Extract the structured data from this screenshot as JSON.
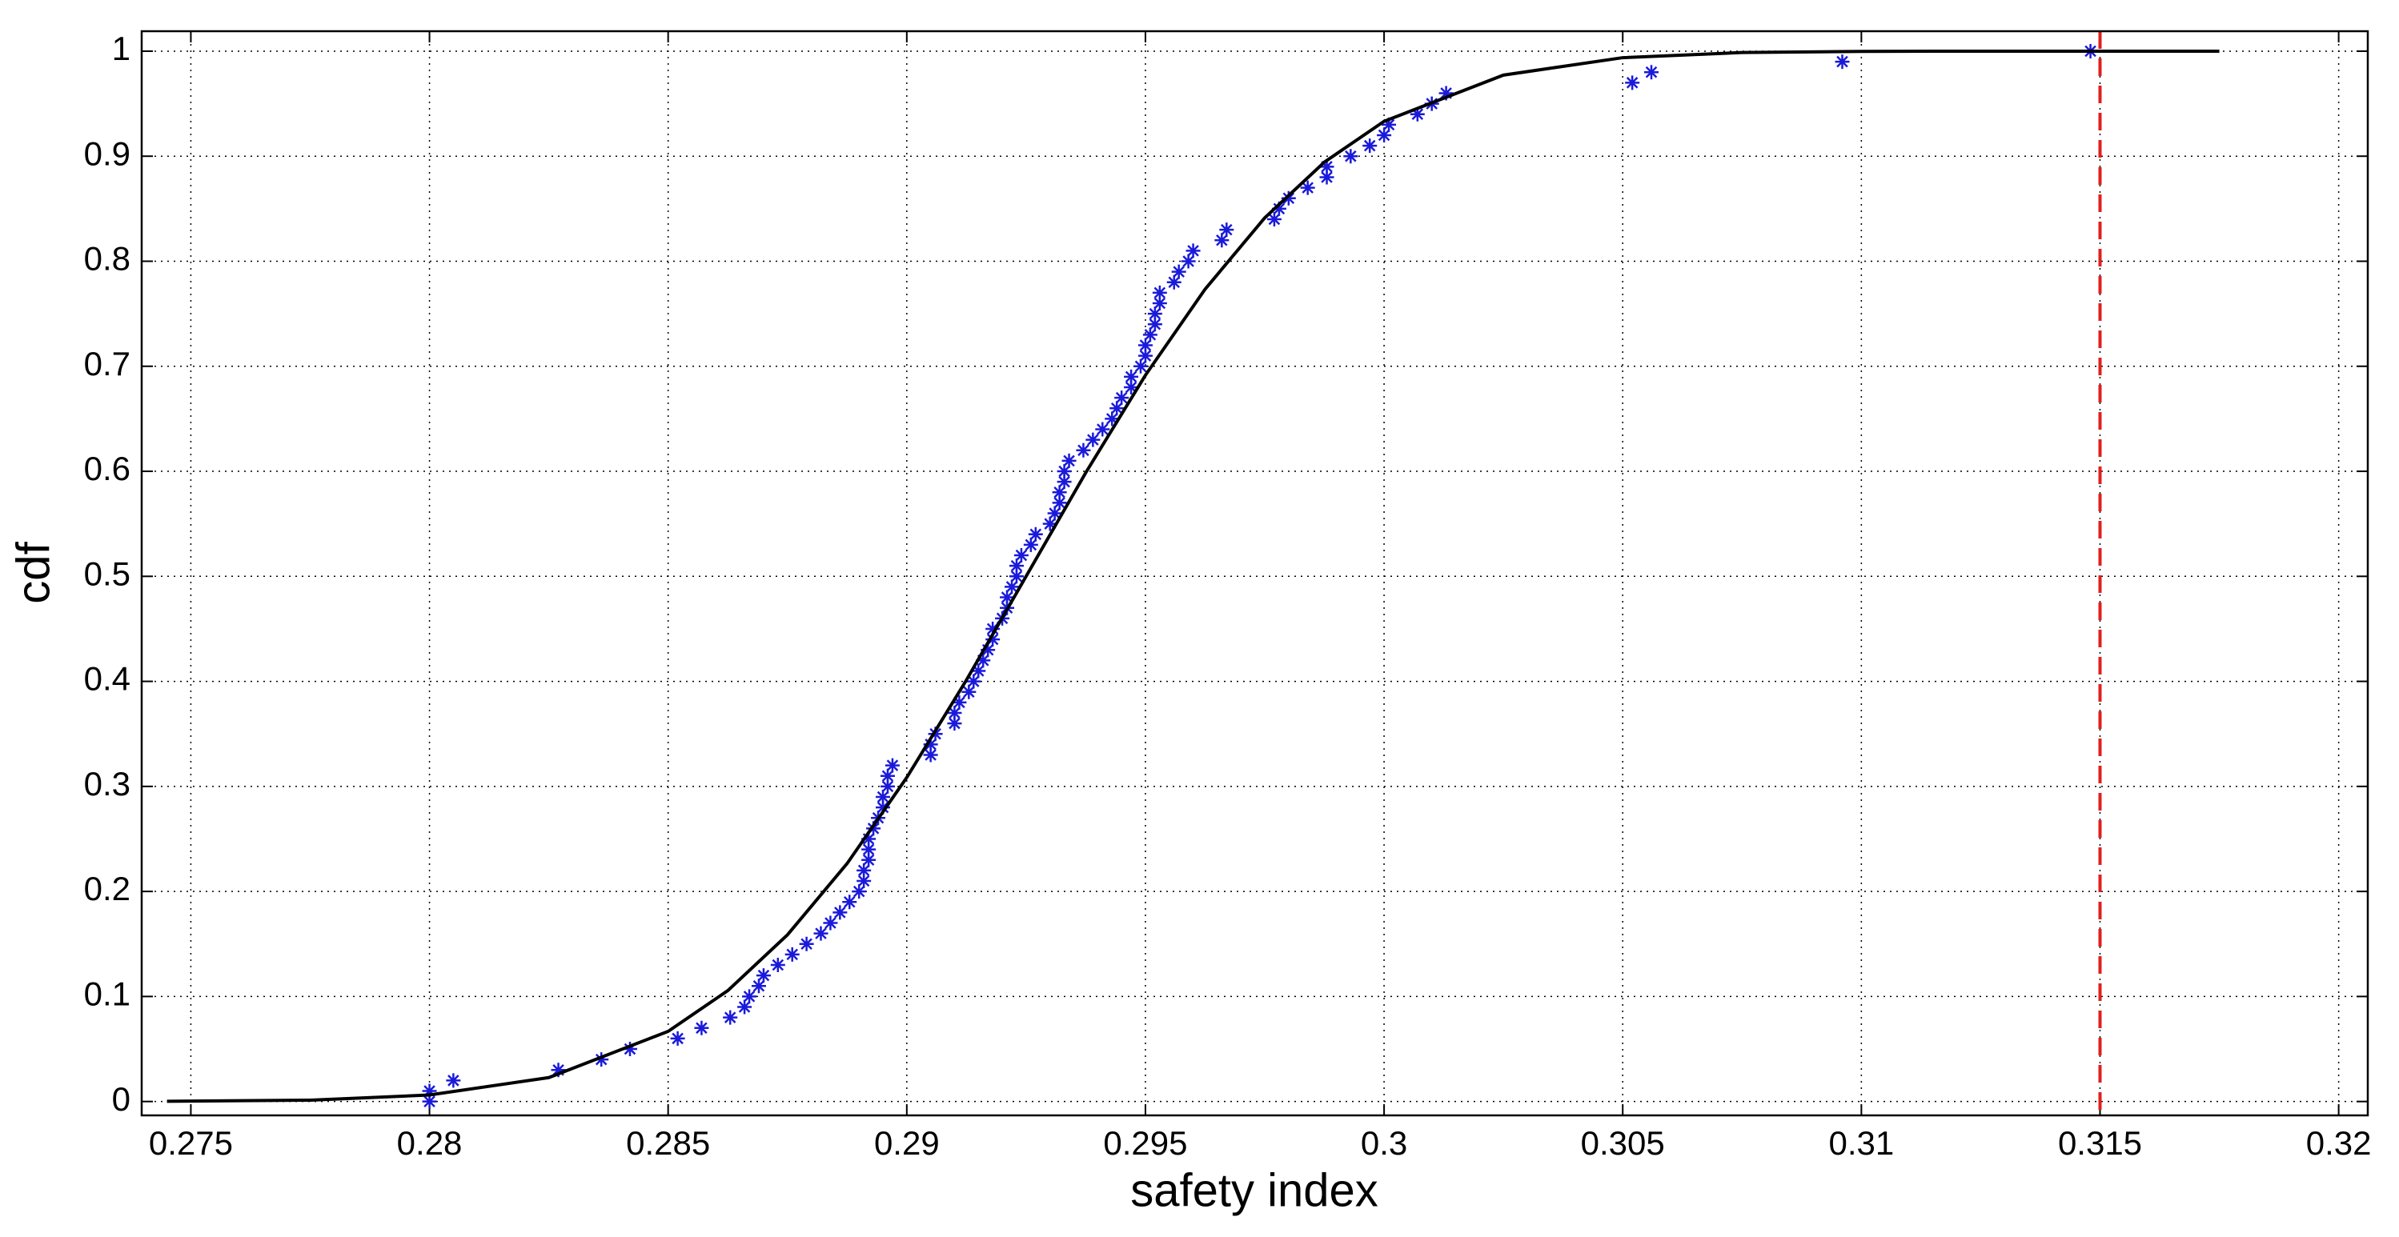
{
  "chart_data": {
    "type": "scatter",
    "xlabel": "safety index",
    "ylabel": "cdf",
    "xlim": [
      0.27397,
      0.32061
    ],
    "ylim": [
      -0.0132,
      1.019
    ],
    "xticks": [
      0.275,
      0.28,
      0.285,
      0.29,
      0.295,
      0.3,
      0.305,
      0.31,
      0.315,
      0.32
    ],
    "yticks": [
      0,
      0.1,
      0.2,
      0.3,
      0.4,
      0.5,
      0.6,
      0.7,
      0.8,
      0.9,
      1
    ],
    "grid": true,
    "vline": {
      "value": 0.315,
      "color": "#e0201b"
    },
    "series": [
      {
        "type": "scatter",
        "color": "#1a1adb",
        "x": [
          0.28,
          0.28,
          0.2805,
          0.2827,
          0.2836,
          0.2842,
          0.2852,
          0.2857,
          0.2863,
          0.2866,
          0.2867,
          0.2869,
          0.287,
          0.2873,
          0.2876,
          0.2879,
          0.2882,
          0.2884,
          0.2886,
          0.2888,
          0.289,
          0.2891,
          0.2891,
          0.2892,
          0.2892,
          0.2892,
          0.2893,
          0.2894,
          0.2895,
          0.2895,
          0.2896,
          0.2896,
          0.2897,
          0.2905,
          0.2905,
          0.2906,
          0.291,
          0.291,
          0.2911,
          0.2913,
          0.2914,
          0.2915,
          0.2916,
          0.2917,
          0.2918,
          0.2918,
          0.292,
          0.2921,
          0.2921,
          0.2922,
          0.2923,
          0.2923,
          0.2924,
          0.2926,
          0.2927,
          0.293,
          0.2931,
          0.2932,
          0.2932,
          0.2933,
          0.2933,
          0.2934,
          0.2937,
          0.2939,
          0.2941,
          0.2943,
          0.2944,
          0.2945,
          0.2947,
          0.2947,
          0.2949,
          0.295,
          0.295,
          0.2951,
          0.2952,
          0.2952,
          0.2953,
          0.2953,
          0.2956,
          0.2957,
          0.2959,
          0.296,
          0.2966,
          0.2967,
          0.2977,
          0.2978,
          0.298,
          0.2984,
          0.2988,
          0.2988,
          0.2993,
          0.2997,
          0.3,
          0.3001,
          0.3007,
          0.301,
          0.3013,
          0.3052,
          0.3056,
          0.3096,
          0.3148
        ],
        "values": [
          0,
          0.01,
          0.02,
          0.03,
          0.04,
          0.05,
          0.06,
          0.07,
          0.08,
          0.09,
          0.1,
          0.11,
          0.12,
          0.13,
          0.14,
          0.15,
          0.16,
          0.17,
          0.18,
          0.19,
          0.2,
          0.21,
          0.22,
          0.23,
          0.24,
          0.25,
          0.26,
          0.27,
          0.28,
          0.29,
          0.3,
          0.31,
          0.32,
          0.33,
          0.34,
          0.35,
          0.36,
          0.37,
          0.38,
          0.39,
          0.4,
          0.41,
          0.42,
          0.43,
          0.44,
          0.45,
          0.46,
          0.47,
          0.48,
          0.49,
          0.5,
          0.51,
          0.52,
          0.53,
          0.54,
          0.55,
          0.56,
          0.57,
          0.58,
          0.59,
          0.6,
          0.61,
          0.62,
          0.63,
          0.64,
          0.65,
          0.66,
          0.67,
          0.68,
          0.69,
          0.7,
          0.71,
          0.72,
          0.73,
          0.74,
          0.75,
          0.76,
          0.77,
          0.78,
          0.79,
          0.8,
          0.81,
          0.82,
          0.83,
          0.84,
          0.85,
          0.86,
          0.87,
          0.88,
          0.89,
          0.9,
          0.91,
          0.92,
          0.93,
          0.94,
          0.95,
          0.96,
          0.97,
          0.98,
          0.99,
          1
        ]
      },
      {
        "type": "line",
        "color": "#000000",
        "x": [
          0.2745,
          0.2775,
          0.28,
          0.2825,
          0.285,
          0.28625,
          0.2875,
          0.28875,
          0.29,
          0.29125,
          0.2925,
          0.29375,
          0.295,
          0.29625,
          0.2975,
          0.29875,
          0.3,
          0.3025,
          0.305,
          0.3075,
          0.31,
          0.3125,
          0.315,
          0.3175
        ],
        "values": [
          0.0002,
          0.0013,
          0.0062,
          0.0228,
          0.0668,
          0.1056,
          0.1587,
          0.2266,
          0.3085,
          0.4013,
          0.5,
          0.5987,
          0.6915,
          0.7734,
          0.8413,
          0.8944,
          0.9332,
          0.9772,
          0.9938,
          0.9987,
          0.9998,
          1,
          1,
          1
        ]
      }
    ]
  }
}
